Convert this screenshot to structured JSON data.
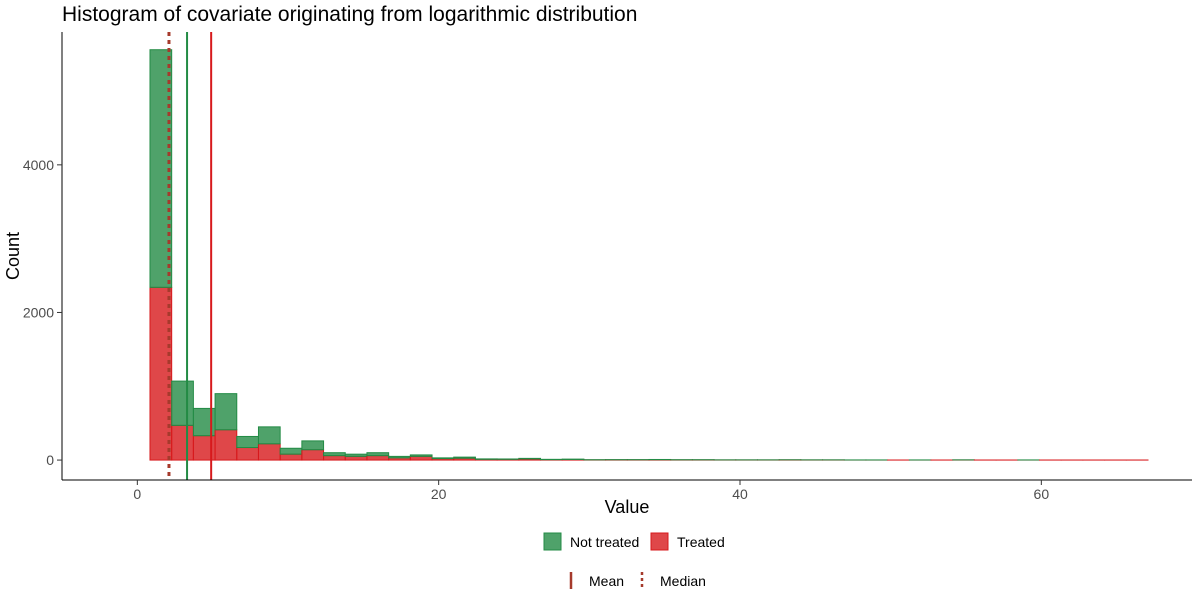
{
  "chart_data": {
    "type": "bar",
    "subtype": "stacked-histogram",
    "title": "Histogram of covariate originating from logarithmic distribution",
    "xlabel": "Value",
    "ylabel": "Count",
    "xlim": [
      -5,
      70
    ],
    "ylim": [
      -270,
      5800
    ],
    "x_ticks": [
      0,
      20,
      40,
      60
    ],
    "y_ticks": [
      0,
      2000,
      4000
    ],
    "x_tick_labels": [
      "0",
      "20",
      "40",
      "60"
    ],
    "y_tick_labels": [
      "0",
      "2000",
      "4000"
    ],
    "grid": false,
    "bin_edges": [
      0.84,
      2.28,
      3.72,
      5.16,
      6.6,
      8.04,
      9.48,
      10.92,
      12.36,
      13.8,
      15.24,
      16.68,
      18.12,
      19.56,
      21.0,
      22.44,
      23.88,
      25.32,
      26.76,
      28.2,
      29.64,
      31.08,
      32.52,
      33.96,
      35.4,
      36.84,
      38.28,
      39.72,
      41.16,
      42.6,
      44.04,
      45.48,
      46.92,
      48.36,
      49.8,
      51.24,
      52.68,
      54.12,
      55.56,
      57.0,
      58.44,
      59.88,
      61.32,
      62.76,
      64.2,
      65.64,
      67.08
    ],
    "series": [
      {
        "name": "Not treated",
        "color": "#238b45",
        "values": [
          3220,
          600,
          370,
          490,
          150,
          230,
          80,
          120,
          40,
          30,
          40,
          20,
          20,
          10,
          15,
          6,
          5,
          8,
          4,
          5,
          2,
          2,
          2,
          3,
          2,
          2,
          1,
          1,
          1,
          1,
          1,
          1,
          1,
          1,
          0,
          1,
          0,
          1,
          0,
          0,
          1,
          0,
          0,
          0,
          0,
          0
        ]
      },
      {
        "name": "Treated",
        "color": "#d7191c",
        "values": [
          2340,
          470,
          330,
          410,
          170,
          220,
          80,
          140,
          60,
          50,
          60,
          30,
          50,
          20,
          25,
          10,
          10,
          15,
          6,
          8,
          3,
          4,
          4,
          5,
          3,
          3,
          2,
          2,
          2,
          3,
          2,
          2,
          1,
          1,
          1,
          1,
          1,
          2,
          1,
          1,
          1,
          1,
          1,
          1,
          1,
          1
        ]
      }
    ],
    "reference_lines": [
      {
        "kind": "mean",
        "group": "Not treated",
        "value": 3.3,
        "color": "#238b45",
        "style": "solid"
      },
      {
        "kind": "mean",
        "group": "Treated",
        "value": 4.9,
        "color": "#d7191c",
        "style": "solid"
      },
      {
        "kind": "median",
        "group": "Treated",
        "value": 2.1,
        "color": "#a63a2c",
        "style": "dashed"
      }
    ],
    "legend_fill": {
      "placement": "bottom",
      "entries": [
        {
          "label": "Not treated",
          "color": "#238b45"
        },
        {
          "label": "Treated",
          "color": "#d7191c"
        }
      ]
    },
    "legend_line": {
      "placement": "bottom",
      "color": "#a63a2c",
      "entries": [
        {
          "label": "Mean",
          "style": "solid"
        },
        {
          "label": "Median",
          "style": "dashed"
        }
      ]
    }
  }
}
